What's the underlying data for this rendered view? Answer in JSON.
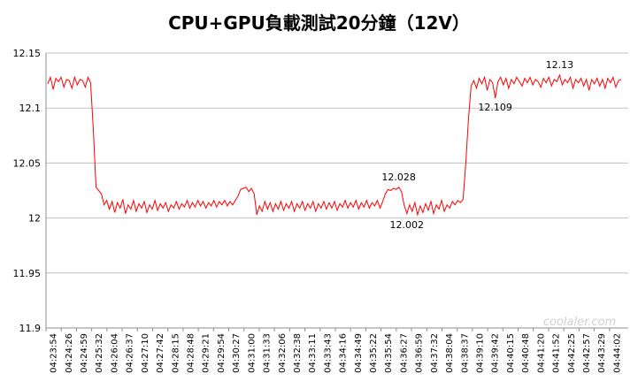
{
  "chart_data": {
    "type": "line",
    "title": "CPU+GPU負載測試20分鐘（12V）",
    "xlabel": "",
    "ylabel": "",
    "ylim": [
      11.9,
      12.15
    ],
    "yticks": [
      "12.15",
      "12.1",
      "12.05",
      "12",
      "11.95",
      "11.9"
    ],
    "yticks_values": [
      12.15,
      12.1,
      12.05,
      12.0,
      11.95,
      11.9
    ],
    "x_tick_labels": [
      "04:23:54",
      "04:24:26",
      "04:24:59",
      "04:25:32",
      "04:26:04",
      "04:26:37",
      "04:27:10",
      "04:27:42",
      "04:28:15",
      "04:28:48",
      "04:29:21",
      "04:29:54",
      "04:30:27",
      "04:31:00",
      "04:31:33",
      "04:32:06",
      "04:32:38",
      "04:33:11",
      "04:33:43",
      "04:34:16",
      "04:34:49",
      "04:35:22",
      "04:35:54",
      "04:36:27",
      "04:36:59",
      "04:37:32",
      "04:38:04",
      "04:38:37",
      "04:39:10",
      "04:39:42",
      "04:40:15",
      "04:40:48",
      "04:41:20",
      "04:41:52",
      "04:42:25",
      "04:42:57",
      "04:43:29",
      "04:44:02"
    ],
    "grid": "horizontal",
    "legend": "none",
    "line_color": "#ff0000",
    "series": [
      {
        "values": [
          [
            0,
            12.122
          ],
          [
            1,
            12.128
          ],
          [
            2,
            12.117
          ],
          [
            3,
            12.127
          ],
          [
            4,
            12.124
          ],
          [
            5,
            12.128
          ],
          [
            6,
            12.119
          ],
          [
            7,
            12.126
          ],
          [
            8,
            12.125
          ],
          [
            9,
            12.118
          ],
          [
            10,
            12.128
          ],
          [
            11,
            12.121
          ],
          [
            12,
            12.126
          ],
          [
            13,
            12.125
          ],
          [
            14,
            12.119
          ],
          [
            15,
            12.128
          ],
          [
            16,
            12.123
          ],
          [
            17,
            12.08
          ],
          [
            18,
            12.028
          ],
          [
            19,
            12.025
          ],
          [
            20,
            12.022
          ],
          [
            21,
            12.012
          ],
          [
            22,
            12.016
          ],
          [
            23,
            12.008
          ],
          [
            24,
            12.015
          ],
          [
            25,
            12.005
          ],
          [
            26,
            12.014
          ],
          [
            27,
            12.009
          ],
          [
            28,
            12.017
          ],
          [
            29,
            12.004
          ],
          [
            30,
            12.012
          ],
          [
            31,
            12.008
          ],
          [
            32,
            12.016
          ],
          [
            33,
            12.006
          ],
          [
            34,
            12.013
          ],
          [
            35,
            12.009
          ],
          [
            36,
            12.015
          ],
          [
            37,
            12.005
          ],
          [
            38,
            12.012
          ],
          [
            39,
            12.008
          ],
          [
            40,
            12.016
          ],
          [
            41,
            12.007
          ],
          [
            42,
            12.013
          ],
          [
            43,
            12.009
          ],
          [
            44,
            12.014
          ],
          [
            45,
            12.006
          ],
          [
            46,
            12.012
          ],
          [
            47,
            12.009
          ],
          [
            48,
            12.015
          ],
          [
            49,
            12.008
          ],
          [
            50,
            12.013
          ],
          [
            51,
            12.01
          ],
          [
            52,
            12.016
          ],
          [
            53,
            12.009
          ],
          [
            54,
            12.014
          ],
          [
            55,
            12.01
          ],
          [
            56,
            12.016
          ],
          [
            57,
            12.011
          ],
          [
            58,
            12.015
          ],
          [
            59,
            12.009
          ],
          [
            60,
            12.014
          ],
          [
            61,
            12.011
          ],
          [
            62,
            12.016
          ],
          [
            63,
            12.01
          ],
          [
            64,
            12.015
          ],
          [
            65,
            12.012
          ],
          [
            66,
            12.016
          ],
          [
            67,
            12.011
          ],
          [
            68,
            12.015
          ],
          [
            69,
            12.012
          ],
          [
            70,
            12.016
          ],
          [
            71,
            12.02
          ],
          [
            72,
            12.026
          ],
          [
            73,
            12.027
          ],
          [
            74,
            12.028
          ],
          [
            75,
            12.024
          ],
          [
            76,
            12.027
          ],
          [
            77,
            12.022
          ],
          [
            78,
            12.003
          ],
          [
            79,
            12.011
          ],
          [
            80,
            12.006
          ],
          [
            81,
            12.015
          ],
          [
            82,
            12.008
          ],
          [
            83,
            12.014
          ],
          [
            84,
            12.006
          ],
          [
            85,
            12.013
          ],
          [
            86,
            12.008
          ],
          [
            87,
            12.015
          ],
          [
            88,
            12.007
          ],
          [
            89,
            12.013
          ],
          [
            90,
            12.009
          ],
          [
            91,
            12.015
          ],
          [
            92,
            12.006
          ],
          [
            93,
            12.013
          ],
          [
            94,
            12.009
          ],
          [
            95,
            12.015
          ],
          [
            96,
            12.007
          ],
          [
            97,
            12.013
          ],
          [
            98,
            12.009
          ],
          [
            99,
            12.015
          ],
          [
            100,
            12.006
          ],
          [
            101,
            12.013
          ],
          [
            102,
            12.009
          ],
          [
            103,
            12.015
          ],
          [
            104,
            12.008
          ],
          [
            105,
            12.014
          ],
          [
            106,
            12.009
          ],
          [
            107,
            12.015
          ],
          [
            108,
            12.007
          ],
          [
            109,
            12.013
          ],
          [
            110,
            12.01
          ],
          [
            111,
            12.016
          ],
          [
            112,
            12.009
          ],
          [
            113,
            12.014
          ],
          [
            114,
            12.01
          ],
          [
            115,
            12.016
          ],
          [
            116,
            12.008
          ],
          [
            117,
            12.014
          ],
          [
            118,
            12.01
          ],
          [
            119,
            12.016
          ],
          [
            120,
            12.009
          ],
          [
            121,
            12.014
          ],
          [
            122,
            12.011
          ],
          [
            123,
            12.016
          ],
          [
            124,
            12.009
          ],
          [
            125,
            12.015
          ],
          [
            126,
            12.022
          ],
          [
            127,
            12.026
          ],
          [
            128,
            12.025
          ],
          [
            129,
            12.027
          ],
          [
            130,
            12.026
          ],
          [
            131,
            12.028
          ],
          [
            132,
            12.024
          ],
          [
            133,
            12.012
          ],
          [
            134,
            12.004
          ],
          [
            135,
            12.012
          ],
          [
            136,
            12.006
          ],
          [
            137,
            12.014
          ],
          [
            138,
            12.003
          ],
          [
            139,
            12.011
          ],
          [
            140,
            12.005
          ],
          [
            141,
            12.013
          ],
          [
            142,
            12.007
          ],
          [
            143,
            12.015
          ],
          [
            144,
            12.004
          ],
          [
            145,
            12.012
          ],
          [
            146,
            12.008
          ],
          [
            147,
            12.016
          ],
          [
            148,
            12.006
          ],
          [
            149,
            12.012
          ],
          [
            150,
            12.009
          ],
          [
            151,
            12.015
          ],
          [
            152,
            12.012
          ],
          [
            153,
            12.016
          ],
          [
            154,
            12.014
          ],
          [
            155,
            12.017
          ],
          [
            156,
            12.05
          ],
          [
            157,
            12.09
          ],
          [
            158,
            12.12
          ],
          [
            159,
            12.125
          ],
          [
            160,
            12.118
          ],
          [
            161,
            12.127
          ],
          [
            162,
            12.122
          ],
          [
            163,
            12.128
          ],
          [
            164,
            12.116
          ],
          [
            165,
            12.126
          ],
          [
            166,
            12.123
          ],
          [
            167,
            12.109
          ],
          [
            168,
            12.124
          ],
          [
            169,
            12.128
          ],
          [
            170,
            12.121
          ],
          [
            171,
            12.127
          ],
          [
            172,
            12.118
          ],
          [
            173,
            12.126
          ],
          [
            174,
            12.122
          ],
          [
            175,
            12.128
          ],
          [
            176,
            12.124
          ],
          [
            177,
            12.12
          ],
          [
            178,
            12.127
          ],
          [
            179,
            12.123
          ],
          [
            180,
            12.128
          ],
          [
            181,
            12.121
          ],
          [
            182,
            12.126
          ],
          [
            183,
            12.124
          ],
          [
            184,
            12.119
          ],
          [
            185,
            12.127
          ],
          [
            186,
            12.123
          ],
          [
            187,
            12.128
          ],
          [
            188,
            12.12
          ],
          [
            189,
            12.126
          ],
          [
            190,
            12.124
          ],
          [
            191,
            12.13
          ],
          [
            192,
            12.121
          ],
          [
            193,
            12.126
          ],
          [
            194,
            12.123
          ],
          [
            195,
            12.128
          ],
          [
            196,
            12.118
          ],
          [
            197,
            12.126
          ],
          [
            198,
            12.123
          ],
          [
            199,
            12.127
          ],
          [
            200,
            12.12
          ],
          [
            201,
            12.126
          ],
          [
            202,
            12.116
          ],
          [
            203,
            12.126
          ],
          [
            204,
            12.122
          ],
          [
            205,
            12.127
          ],
          [
            206,
            12.12
          ],
          [
            207,
            12.126
          ],
          [
            208,
            12.118
          ],
          [
            209,
            12.127
          ],
          [
            210,
            12.123
          ],
          [
            211,
            12.128
          ],
          [
            212,
            12.119
          ],
          [
            213,
            12.125
          ],
          [
            214,
            12.126
          ]
        ]
      }
    ],
    "annotations": [
      {
        "text": "12.028",
        "x": 131,
        "y": 12.028
      },
      {
        "text": "12.002",
        "x": 134,
        "y": 12.002
      },
      {
        "text": "12.109",
        "x": 167,
        "y": 12.109
      },
      {
        "text": "12.13",
        "x": 191,
        "y": 12.13
      }
    ],
    "watermark": "coolaler.com"
  }
}
